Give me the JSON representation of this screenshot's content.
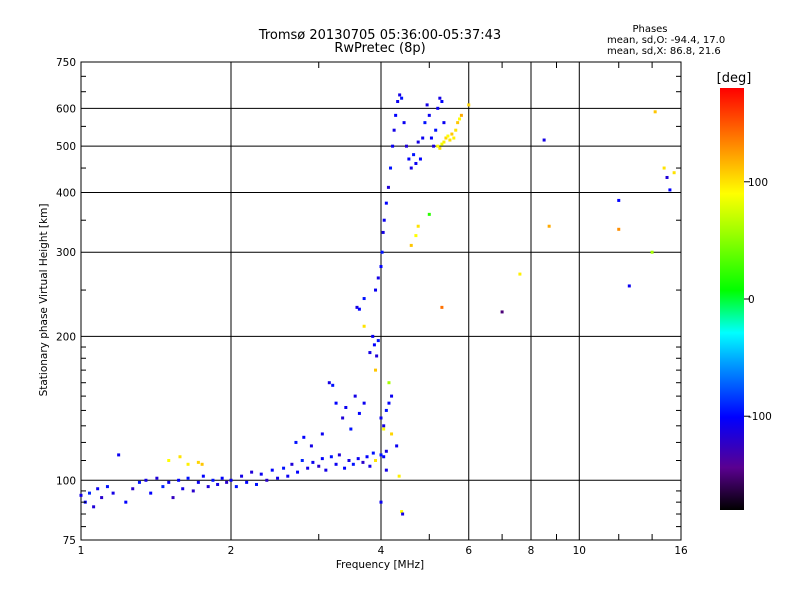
{
  "chart_data": {
    "type": "scatter",
    "title": "Tromsø 20130705 05:36:00-05:37:43",
    "subtitle": "RwPretec (8p)",
    "xlabel": "Frequency [MHz]",
    "ylabel": "Stationary phase Virtual Height [km]",
    "x_scale": "log",
    "y_scale": "log",
    "xlim": [
      1,
      16
    ],
    "ylim": [
      75,
      750
    ],
    "x_ticks": [
      "1",
      "2",
      "4",
      "6",
      "8",
      "10",
      "16"
    ],
    "x_tick_values": [
      1,
      2,
      4,
      6,
      8,
      10,
      16
    ],
    "y_ticks": [
      "750",
      "600",
      "500",
      "400",
      "300",
      "200",
      "100",
      "75"
    ],
    "y_tick_values": [
      750,
      600,
      500,
      400,
      300,
      200,
      100,
      75
    ],
    "grid": true,
    "annotation": {
      "heading": "Phases",
      "line_o": "mean, sd,O: -94.4, 17.0",
      "line_x": "mean, sd,X:  86.8, 21.6"
    },
    "colorbar": {
      "label": "[deg]",
      "range": [
        -180,
        180
      ],
      "ticks": [
        "100",
        "0",
        "-100"
      ],
      "tick_values": [
        100,
        0,
        -100
      ]
    },
    "points": [
      [
        1.0,
        93,
        -110
      ],
      [
        1.02,
        90,
        -100
      ],
      [
        1.04,
        94,
        -90
      ],
      [
        1.06,
        88,
        -115
      ],
      [
        1.08,
        96,
        -105
      ],
      [
        1.1,
        92,
        -120
      ],
      [
        1.13,
        97,
        -95
      ],
      [
        1.16,
        94,
        -110
      ],
      [
        1.19,
        113,
        -105
      ],
      [
        1.23,
        90,
        -100
      ],
      [
        1.27,
        96,
        -120
      ],
      [
        1.31,
        99,
        -95
      ],
      [
        1.35,
        100,
        -110
      ],
      [
        1.38,
        94,
        -100
      ],
      [
        1.42,
        101,
        -115
      ],
      [
        1.46,
        97,
        -90
      ],
      [
        1.5,
        99,
        -105
      ],
      [
        1.53,
        92,
        -125
      ],
      [
        1.57,
        100,
        -100
      ],
      [
        1.6,
        96,
        -110
      ],
      [
        1.64,
        101,
        -95
      ],
      [
        1.68,
        95,
        -120
      ],
      [
        1.72,
        99,
        -105
      ],
      [
        1.76,
        102,
        -100
      ],
      [
        1.8,
        97,
        -115
      ],
      [
        1.84,
        100,
        -95
      ],
      [
        1.88,
        98,
        -110
      ],
      [
        1.92,
        101,
        -100
      ],
      [
        1.96,
        99,
        -120
      ],
      [
        2.0,
        100,
        -105
      ],
      [
        2.05,
        97,
        -95
      ],
      [
        2.1,
        102,
        -110
      ],
      [
        2.15,
        99,
        -100
      ],
      [
        2.2,
        104,
        -115
      ],
      [
        2.25,
        98,
        -95
      ],
      [
        2.3,
        103,
        -105
      ],
      [
        2.36,
        100,
        -120
      ],
      [
        2.42,
        105,
        -100
      ],
      [
        2.48,
        101,
        -110
      ],
      [
        2.55,
        106,
        -95
      ],
      [
        2.6,
        102,
        -105
      ],
      [
        2.65,
        108,
        -115
      ],
      [
        2.72,
        104,
        -100
      ],
      [
        2.78,
        110,
        -90
      ],
      [
        2.85,
        106,
        -110
      ],
      [
        2.92,
        109,
        -105
      ],
      [
        3.0,
        107,
        -120
      ],
      [
        3.05,
        111,
        -100
      ],
      [
        3.1,
        105,
        -110
      ],
      [
        3.18,
        112,
        -95
      ],
      [
        3.25,
        108,
        -105
      ],
      [
        3.3,
        113,
        -115
      ],
      [
        3.38,
        106,
        -100
      ],
      [
        3.45,
        110,
        -110
      ],
      [
        3.52,
        108,
        -95
      ],
      [
        3.6,
        111,
        -105
      ],
      [
        3.68,
        109,
        -120
      ],
      [
        3.75,
        112,
        -100
      ],
      [
        3.8,
        107,
        -110
      ],
      [
        3.86,
        114,
        -95
      ],
      [
        1.5,
        110,
        90
      ],
      [
        1.58,
        112,
        100
      ],
      [
        1.64,
        108,
        95
      ],
      [
        1.72,
        109,
        105
      ],
      [
        1.75,
        108,
        110
      ],
      [
        2.7,
        120,
        -95
      ],
      [
        2.8,
        123,
        -100
      ],
      [
        2.9,
        118,
        -110
      ],
      [
        3.05,
        125,
        -105
      ],
      [
        3.15,
        160,
        -110
      ],
      [
        3.2,
        158,
        -95
      ],
      [
        3.25,
        145,
        -100
      ],
      [
        3.35,
        135,
        -115
      ],
      [
        3.4,
        142,
        -105
      ],
      [
        3.48,
        128,
        -95
      ],
      [
        3.55,
        150,
        -110
      ],
      [
        3.62,
        138,
        -100
      ],
      [
        3.7,
        145,
        -105
      ],
      [
        3.58,
        230,
        -110
      ],
      [
        3.62,
        228,
        -100
      ],
      [
        3.7,
        240,
        -95
      ],
      [
        3.8,
        185,
        -110
      ],
      [
        3.85,
        200,
        -105
      ],
      [
        3.88,
        192,
        -100
      ],
      [
        3.92,
        182,
        -115
      ],
      [
        3.95,
        196,
        -95
      ],
      [
        3.9,
        250,
        -105
      ],
      [
        3.95,
        265,
        -110
      ],
      [
        4.0,
        280,
        -100
      ],
      [
        4.02,
        300,
        -95
      ],
      [
        4.04,
        330,
        -110
      ],
      [
        4.06,
        350,
        -105
      ],
      [
        4.1,
        380,
        -100
      ],
      [
        4.14,
        410,
        -115
      ],
      [
        4.18,
        450,
        -95
      ],
      [
        4.22,
        500,
        -105
      ],
      [
        4.25,
        540,
        -110
      ],
      [
        4.28,
        580,
        -100
      ],
      [
        4.32,
        620,
        -105
      ],
      [
        4.36,
        640,
        -110
      ],
      [
        4.4,
        630,
        -95
      ],
      [
        4.45,
        560,
        -105
      ],
      [
        4.5,
        500,
        -115
      ],
      [
        4.55,
        470,
        -100
      ],
      [
        4.6,
        450,
        -110
      ],
      [
        4.65,
        480,
        -95
      ],
      [
        4.7,
        460,
        -105
      ],
      [
        4.75,
        510,
        -110
      ],
      [
        4.8,
        470,
        -100
      ],
      [
        4.85,
        520,
        -105
      ],
      [
        4.9,
        560,
        -95
      ],
      [
        4.95,
        610,
        -110
      ],
      [
        5.0,
        580,
        -105
      ],
      [
        5.05,
        520,
        -100
      ],
      [
        5.1,
        500,
        -115
      ],
      [
        5.15,
        540,
        -95
      ],
      [
        5.2,
        600,
        -105
      ],
      [
        5.25,
        630,
        -110
      ],
      [
        5.3,
        620,
        -100
      ],
      [
        5.35,
        560,
        -105
      ],
      [
        4.0,
        135,
        -105
      ],
      [
        4.05,
        130,
        -110
      ],
      [
        4.1,
        140,
        -95
      ],
      [
        4.15,
        145,
        -100
      ],
      [
        4.2,
        150,
        -105
      ],
      [
        4.05,
        112,
        -100
      ],
      [
        4.1,
        115,
        -110
      ],
      [
        4.0,
        113,
        -95
      ],
      [
        4.3,
        118,
        -105
      ],
      [
        4.35,
        102,
        95
      ],
      [
        4.4,
        86,
        90
      ],
      [
        4.42,
        85,
        -110
      ],
      [
        4.0,
        90,
        -105
      ],
      [
        3.9,
        110,
        100
      ],
      [
        4.05,
        128,
        90
      ],
      [
        4.1,
        105,
        -110
      ],
      [
        4.2,
        125,
        105
      ],
      [
        4.15,
        160,
        60
      ],
      [
        3.9,
        170,
        110
      ],
      [
        3.7,
        210,
        100
      ],
      [
        4.6,
        310,
        110
      ],
      [
        4.7,
        325,
        90
      ],
      [
        4.75,
        340,
        100
      ],
      [
        5.0,
        360,
        20
      ],
      [
        5.2,
        500,
        90
      ],
      [
        5.25,
        495,
        100
      ],
      [
        5.3,
        505,
        85
      ],
      [
        5.35,
        510,
        95
      ],
      [
        5.4,
        520,
        105
      ],
      [
        5.45,
        525,
        90
      ],
      [
        5.5,
        515,
        100
      ],
      [
        5.55,
        530,
        110
      ],
      [
        5.6,
        520,
        95
      ],
      [
        5.65,
        540,
        100
      ],
      [
        5.7,
        560,
        110
      ],
      [
        5.75,
        570,
        90
      ],
      [
        5.8,
        580,
        120
      ],
      [
        6.0,
        610,
        105
      ],
      [
        5.3,
        230,
        140
      ],
      [
        7.0,
        225,
        -150
      ],
      [
        7.6,
        270,
        95
      ],
      [
        8.5,
        515,
        -110
      ],
      [
        8.7,
        340,
        120
      ],
      [
        12.0,
        385,
        -100
      ],
      [
        12.0,
        335,
        130
      ],
      [
        12.6,
        255,
        -105
      ],
      [
        14.0,
        300,
        60
      ],
      [
        14.2,
        590,
        110
      ],
      [
        14.8,
        450,
        100
      ],
      [
        15.0,
        430,
        -115
      ],
      [
        15.2,
        405,
        -100
      ],
      [
        15.5,
        440,
        100
      ]
    ]
  }
}
